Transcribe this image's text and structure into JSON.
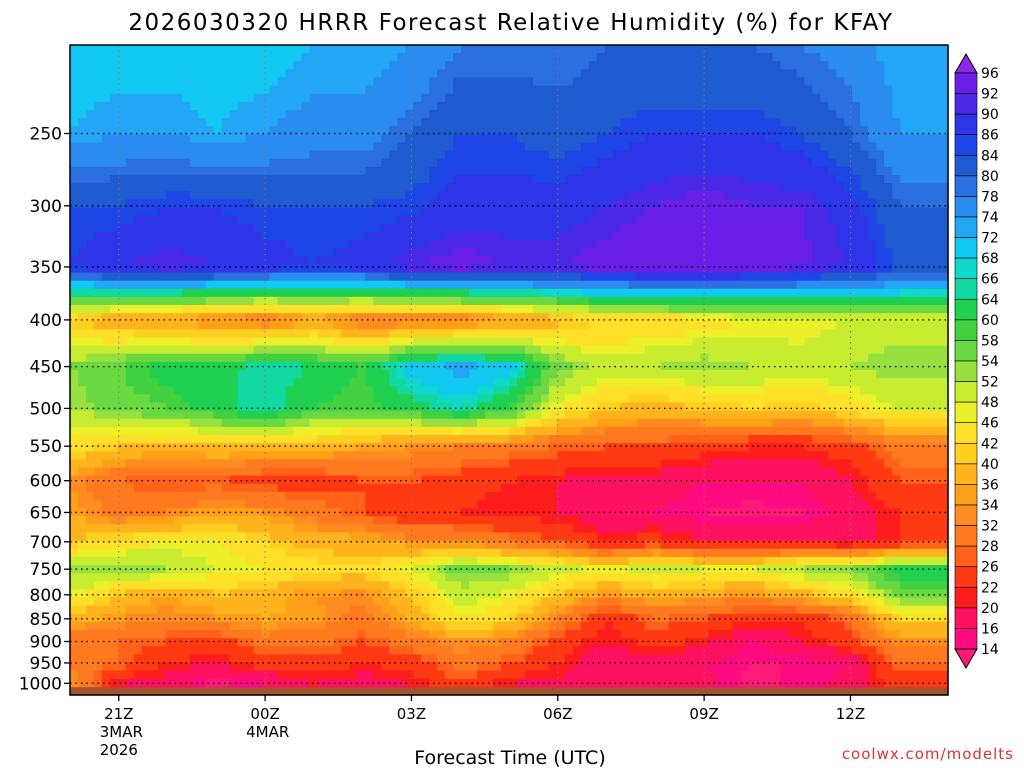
{
  "chart_data": {
    "type": "heatmap",
    "title": "2026030320 HRRR Forecast Relative Humidity (%) for KFAY",
    "xlabel": "Forecast Time (UTC)",
    "ylabel": "",
    "credit": "coolwx.com/modelts",
    "x_hours": [
      0,
      1,
      2,
      3,
      4,
      5,
      6,
      7,
      8,
      9,
      10,
      11,
      12,
      13,
      14,
      15,
      16,
      17
    ],
    "x_ticks": [
      {
        "hour": 1,
        "lines": [
          "21Z",
          "3MAR",
          "2026"
        ]
      },
      {
        "hour": 4,
        "lines": [
          "00Z",
          "4MAR"
        ]
      },
      {
        "hour": 7,
        "lines": [
          "03Z"
        ]
      },
      {
        "hour": 10,
        "lines": [
          "06Z"
        ]
      },
      {
        "hour": 13,
        "lines": [
          "09Z"
        ]
      },
      {
        "hour": 16,
        "lines": [
          "12Z"
        ]
      }
    ],
    "y_levels": [
      1000,
      950,
      900,
      850,
      800,
      750,
      700,
      650,
      600,
      550,
      500,
      450,
      400,
      350,
      300,
      250,
      200
    ],
    "y_tick_labels": [
      "250",
      "300",
      "350",
      "400",
      "450",
      "500",
      "550",
      "600",
      "650",
      "700",
      "750",
      "800",
      "850",
      "900",
      "950",
      "1000"
    ],
    "y_tick_values": [
      250,
      300,
      350,
      400,
      450,
      500,
      550,
      600,
      650,
      700,
      750,
      800,
      850,
      900,
      950,
      1000
    ],
    "ylim": [
      1030,
      200
    ],
    "xlim": [
      0,
      18
    ],
    "surface_pressure": 1010,
    "colorbar": {
      "labels": [
        "96",
        "92",
        "90",
        "86",
        "84",
        "80",
        "78",
        "74",
        "72",
        "68",
        "66",
        "64",
        "60",
        "58",
        "54",
        "52",
        "48",
        "46",
        "42",
        "40",
        "36",
        "34",
        "32",
        "28",
        "26",
        "22",
        "20",
        "16",
        "14"
      ],
      "values": [
        96,
        92,
        90,
        86,
        84,
        80,
        78,
        74,
        72,
        68,
        66,
        64,
        60,
        58,
        54,
        52,
        48,
        46,
        42,
        40,
        36,
        34,
        32,
        28,
        26,
        22,
        20,
        16,
        14
      ],
      "colors": [
        "#8020e0",
        "#6a1fe8",
        "#4a28e6",
        "#2e34e8",
        "#1e46e6",
        "#1e5ad0",
        "#2a6ee0",
        "#2a8cf0",
        "#22a6f5",
        "#10c8f0",
        "#10d8cc",
        "#10d8a0",
        "#20d050",
        "#40d040",
        "#6ad840",
        "#98e040",
        "#c8ec30",
        "#ecf028",
        "#ffe028",
        "#ffd020",
        "#ffb41e",
        "#ffa018",
        "#ff8c20",
        "#ff7a1e",
        "#ff6218",
        "#ff3a12",
        "#ff1c1c",
        "#ff1060",
        "#ff0a80"
      ],
      "top_color": "#8a2ae8",
      "bottom_color": "#ff1a78"
    },
    "grid": true,
    "rh": [
      [
        35,
        20,
        18,
        13,
        16,
        20,
        18,
        20,
        26,
        20,
        19,
        17,
        18,
        17,
        13,
        15,
        17,
        24
      ],
      [
        30,
        28,
        22,
        20,
        24,
        24,
        22,
        24,
        30,
        26,
        22,
        16,
        18,
        16,
        14,
        14,
        16,
        28
      ],
      [
        28,
        28,
        26,
        24,
        30,
        30,
        26,
        30,
        34,
        32,
        24,
        20,
        24,
        21,
        16,
        20,
        24,
        34
      ],
      [
        38,
        34,
        32,
        34,
        36,
        35,
        30,
        37,
        46,
        42,
        32,
        22,
        28,
        26,
        22,
        22,
        28,
        42
      ],
      [
        48,
        40,
        36,
        40,
        38,
        34,
        33,
        40,
        50,
        47,
        40,
        34,
        38,
        36,
        34,
        38,
        44,
        56
      ],
      [
        54,
        54,
        52,
        48,
        46,
        44,
        42,
        48,
        56,
        54,
        50,
        46,
        50,
        48,
        48,
        52,
        54,
        62
      ],
      [
        40,
        44,
        46,
        46,
        42,
        38,
        38,
        34,
        33,
        30,
        26,
        22,
        24,
        20,
        20,
        20,
        18,
        22
      ],
      [
        36,
        30,
        32,
        36,
        34,
        30,
        26,
        22,
        22,
        20,
        20,
        16,
        16,
        14,
        13,
        14,
        18,
        22
      ],
      [
        34,
        28,
        26,
        26,
        24,
        24,
        26,
        26,
        24,
        22,
        20,
        18,
        18,
        16,
        16,
        16,
        20,
        26
      ],
      [
        44,
        40,
        38,
        40,
        38,
        38,
        36,
        34,
        32,
        30,
        28,
        26,
        26,
        24,
        22,
        22,
        24,
        30
      ],
      [
        52,
        56,
        58,
        62,
        66,
        60,
        58,
        62,
        66,
        60,
        46,
        40,
        38,
        40,
        42,
        40,
        44,
        48
      ],
      [
        54,
        58,
        62,
        62,
        66,
        64,
        60,
        70,
        74,
        70,
        56,
        50,
        52,
        54,
        52,
        50,
        52,
        54
      ],
      [
        40,
        36,
        34,
        32,
        30,
        34,
        30,
        30,
        30,
        34,
        38,
        42,
        42,
        44,
        46,
        46,
        48,
        50
      ],
      [
        86,
        90,
        92,
        90,
        88,
        86,
        88,
        92,
        94,
        92,
        92,
        94,
        96,
        96,
        94,
        93,
        90,
        84
      ],
      [
        84,
        84,
        86,
        86,
        84,
        84,
        84,
        85,
        88,
        88,
        88,
        90,
        92,
        94,
        92,
        92,
        88,
        80
      ],
      [
        72,
        74,
        74,
        72,
        74,
        76,
        76,
        80,
        84,
        84,
        82,
        84,
        86,
        86,
        86,
        84,
        80,
        74
      ],
      [
        70,
        70,
        70,
        70,
        70,
        72,
        72,
        74,
        78,
        78,
        78,
        80,
        80,
        80,
        80,
        78,
        76,
        72
      ]
    ]
  }
}
